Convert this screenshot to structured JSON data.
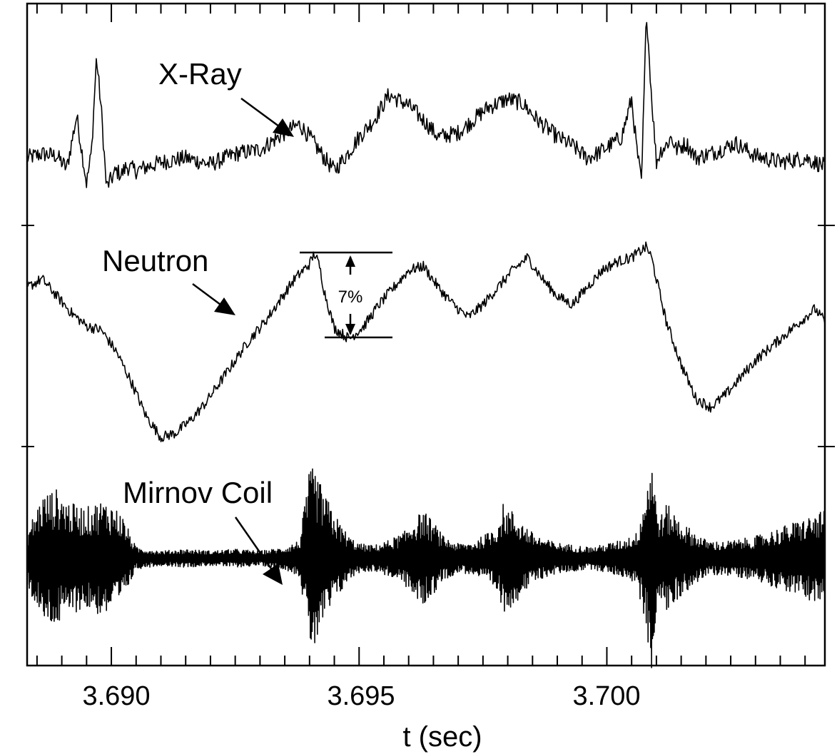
{
  "chart_data": {
    "type": "line",
    "xlabel": "t (sec)",
    "xlim": [
      3.6883,
      3.7044
    ],
    "x_ticks": [
      "3.690",
      "3.695",
      "3.700"
    ],
    "panels": [
      {
        "name": "X-Ray",
        "label": "X-Ray",
        "ylim": [
          0,
          1
        ],
        "series": [
          {
            "name": "X-Ray",
            "x": [
              3.6883,
              3.6886,
              3.6889,
              3.6891,
              3.6893,
              3.6894,
              3.6895,
              3.6896,
              3.6897,
              3.6898,
              3.6899,
              3.69,
              3.6901,
              3.6902,
              3.6903,
              3.6905,
              3.691,
              3.6915,
              3.692,
              3.6925,
              3.693,
              3.6935,
              3.6938,
              3.694,
              3.6943,
              3.6945,
              3.6948,
              3.695,
              3.6953,
              3.6956,
              3.696,
              3.6963,
              3.6966,
              3.697,
              3.6973,
              3.6976,
              3.698,
              3.6983,
              3.6986,
              3.699,
              3.6993,
              3.6996,
              3.6998,
              3.7,
              3.7003,
              3.7005,
              3.7006,
              3.7007,
              3.7008,
              3.7009,
              3.701,
              3.7011,
              3.7012,
              3.7013,
              3.7014,
              3.7016,
              3.7018,
              3.7022,
              3.7026,
              3.703,
              3.7035,
              3.704,
              3.7044
            ],
            "y": [
              0.3,
              0.32,
              0.31,
              0.25,
              0.5,
              0.34,
              0.18,
              0.33,
              0.78,
              0.52,
              0.16,
              0.2,
              0.24,
              0.22,
              0.26,
              0.24,
              0.28,
              0.3,
              0.27,
              0.32,
              0.34,
              0.42,
              0.46,
              0.4,
              0.3,
              0.24,
              0.33,
              0.4,
              0.48,
              0.6,
              0.55,
              0.48,
              0.4,
              0.42,
              0.48,
              0.54,
              0.58,
              0.56,
              0.48,
              0.4,
              0.36,
              0.3,
              0.32,
              0.35,
              0.4,
              0.58,
              0.35,
              0.18,
              1.0,
              0.6,
              0.28,
              0.34,
              0.36,
              0.4,
              0.34,
              0.37,
              0.3,
              0.33,
              0.37,
              0.31,
              0.28,
              0.3,
              0.26
            ]
          }
        ]
      },
      {
        "name": "Neutron",
        "label": "Neutron",
        "ylim": [
          0,
          1
        ],
        "annotation": "7%",
        "series": [
          {
            "name": "Neutron",
            "x": [
              3.6883,
              3.6886,
              3.6889,
              3.6892,
              3.6895,
              3.6898,
              3.6901,
              3.6904,
              3.6907,
              3.691,
              3.6913,
              3.6916,
              3.6919,
              3.6922,
              3.6925,
              3.6928,
              3.6931,
              3.6934,
              3.6937,
              3.694,
              3.6941,
              3.6942,
              3.6943,
              3.6945,
              3.6948,
              3.6951,
              3.6954,
              3.6957,
              3.696,
              3.6963,
              3.6966,
              3.6969,
              3.6972,
              3.6975,
              3.6978,
              3.6981,
              3.6984,
              3.6987,
              3.699,
              3.6993,
              3.6996,
              3.6999,
              3.7002,
              3.7005,
              3.7008,
              3.7009,
              3.701,
              3.7012,
              3.7015,
              3.7018,
              3.7021,
              3.7024,
              3.7027,
              3.703,
              3.7033,
              3.7036,
              3.7039,
              3.7042,
              3.7044
            ],
            "y": [
              0.74,
              0.78,
              0.7,
              0.62,
              0.56,
              0.54,
              0.44,
              0.3,
              0.14,
              0.04,
              0.06,
              0.12,
              0.2,
              0.3,
              0.4,
              0.5,
              0.58,
              0.68,
              0.78,
              0.85,
              0.9,
              0.84,
              0.72,
              0.55,
              0.5,
              0.56,
              0.66,
              0.74,
              0.82,
              0.84,
              0.74,
              0.66,
              0.6,
              0.66,
              0.74,
              0.82,
              0.88,
              0.78,
              0.7,
              0.66,
              0.74,
              0.82,
              0.86,
              0.88,
              0.93,
              0.88,
              0.78,
              0.58,
              0.38,
              0.22,
              0.18,
              0.24,
              0.32,
              0.4,
              0.46,
              0.52,
              0.58,
              0.64,
              0.58
            ]
          }
        ]
      },
      {
        "name": "Mirnov Coil",
        "label": "Mirnov Coil",
        "ylim": [
          0,
          1
        ],
        "series": [
          {
            "name": "Mirnov Coil",
            "x": [
              3.6883,
              3.6886,
              3.6889,
              3.6892,
              3.6895,
              3.6898,
              3.69,
              3.6902,
              3.6905,
              3.691,
              3.6915,
              3.692,
              3.6925,
              3.693,
              3.6935,
              3.6938,
              3.694,
              3.6941,
              3.6942,
              3.6944,
              3.6946,
              3.6948,
              3.695,
              3.6953,
              3.6956,
              3.6959,
              3.6961,
              3.6963,
              3.6965,
              3.6967,
              3.697,
              3.6973,
              3.6976,
              3.6978,
              3.6979,
              3.6981,
              3.6983,
              3.6985,
              3.6988,
              3.6991,
              3.6994,
              3.6997,
              3.7,
              3.7003,
              3.7006,
              3.7008,
              3.7009,
              3.701,
              3.7011,
              3.7012,
              3.7014,
              3.7016,
              3.7018,
              3.702,
              3.7023,
              3.7026,
              3.703,
              3.7034,
              3.7038,
              3.7042,
              3.7044
            ],
            "amplitude": [
              0.15,
              0.35,
              0.38,
              0.3,
              0.28,
              0.32,
              0.3,
              0.25,
              0.06,
              0.04,
              0.05,
              0.04,
              0.05,
              0.04,
              0.06,
              0.1,
              0.48,
              0.5,
              0.42,
              0.3,
              0.2,
              0.12,
              0.08,
              0.07,
              0.1,
              0.14,
              0.22,
              0.26,
              0.2,
              0.12,
              0.08,
              0.09,
              0.14,
              0.2,
              0.3,
              0.26,
              0.2,
              0.14,
              0.1,
              0.08,
              0.07,
              0.06,
              0.08,
              0.1,
              0.14,
              0.4,
              0.62,
              0.3,
              0.24,
              0.3,
              0.24,
              0.18,
              0.14,
              0.1,
              0.09,
              0.1,
              0.12,
              0.16,
              0.2,
              0.24,
              0.26
            ]
          }
        ]
      }
    ]
  }
}
